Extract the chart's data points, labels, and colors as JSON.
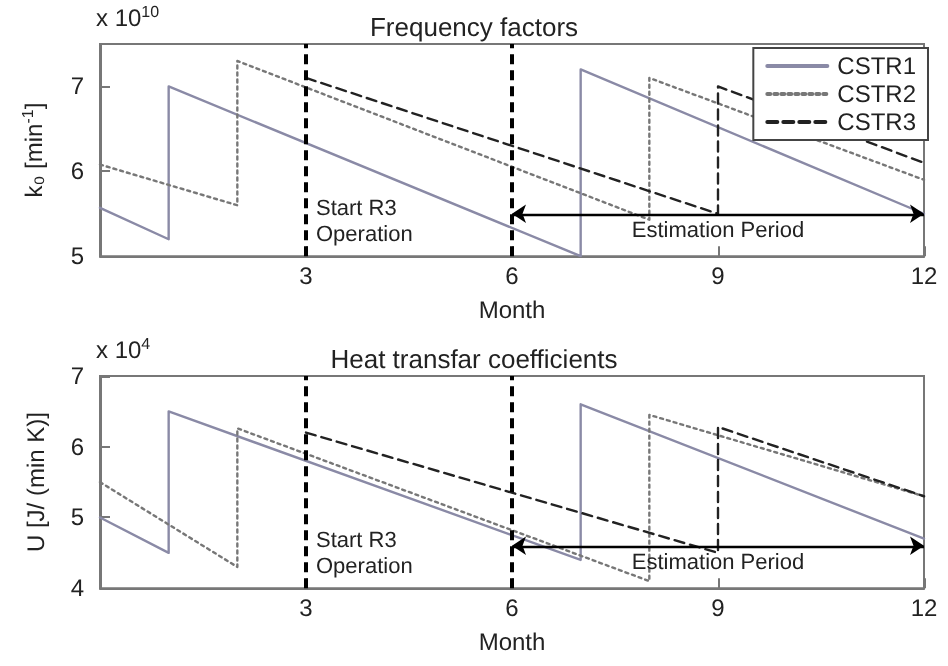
{
  "chart_data": [
    {
      "type": "line",
      "title": "Frequency factors",
      "xlabel": "Month",
      "ylabel": "k₀ [min$^{-1}$]",
      "annotations": [
        "x 10$^{10}$",
        "Estimation Period"
      ],
      "xlim": [
        0,
        12
      ],
      "xticks": [
        3,
        6,
        9,
        12
      ],
      "ylim": [
        5,
        7.5
      ],
      "yticks": [
        5,
        6,
        7
      ],
      "grid": false,
      "legend": "top right",
      "marker": "none",
      "series": [
        {
          "name": "CSTR1",
          "color": "#8a8aa6",
          "line_style": "solid",
          "x": [
            0,
            1,
            1,
            7,
            7,
            12
          ],
          "values": [
            5.57,
            5.2,
            7.0,
            5.0,
            7.2,
            5.5
          ]
        },
        {
          "name": "CSTR2",
          "color": "#777777",
          "line_style": "dotted",
          "x": [
            0,
            2,
            2,
            8,
            8,
            12
          ],
          "values": [
            6.08,
            5.6,
            7.3,
            5.43,
            7.1,
            5.9
          ]
        },
        {
          "name": "CSTR3",
          "color": "#222222",
          "line_style": "dashed",
          "x": [
            3,
            9,
            9,
            12
          ],
          "values": [
            7.1,
            5.5,
            7.0,
            6.1
          ]
        }
      ],
      "ref_lines": [
        {
          "axis": "x",
          "value": 3,
          "label": "Start R3\nOperation",
          "color": "#000000",
          "line_style": "dashed"
        },
        {
          "axis": "x",
          "value": 6,
          "label": null,
          "color": "#000000",
          "line_style": "dashed"
        }
      ]
    },
    {
      "type": "line",
      "title": "Heat transfar coefficients",
      "xlabel": "Month",
      "ylabel": "U [J/ (min K)]",
      "annotations": [
        "x 10$^{4}$",
        "Estimation Period"
      ],
      "xlim": [
        0,
        12
      ],
      "xticks": [
        3,
        6,
        9,
        12
      ],
      "ylim": [
        4,
        7
      ],
      "yticks": [
        4,
        5,
        6,
        7
      ],
      "grid": false,
      "legend": false,
      "marker": "none",
      "series": [
        {
          "color": "#8a8aa6",
          "line_style": "solid",
          "x": [
            0,
            1,
            1,
            7,
            7,
            12
          ],
          "values": [
            5.0,
            4.5,
            6.5,
            4.4,
            6.6,
            4.7
          ]
        },
        {
          "color": "#777777",
          "line_style": "dotted",
          "x": [
            0,
            2,
            2,
            8,
            8,
            12
          ],
          "values": [
            5.5,
            4.3,
            6.26,
            4.1,
            6.45,
            5.3
          ]
        },
        {
          "color": "#222222",
          "line_style": "dashed",
          "x": [
            3,
            9,
            9,
            12
          ],
          "values": [
            6.2,
            4.5,
            6.28,
            5.3
          ]
        }
      ],
      "ref_lines": [
        {
          "axis": "x",
          "value": 3,
          "label": "Start R3\nOperation",
          "color": "#000000",
          "line_style": "dashed"
        },
        {
          "axis": "x",
          "value": 6,
          "label": null,
          "color": "#000000",
          "line_style": "dashed"
        }
      ]
    }
  ]
}
